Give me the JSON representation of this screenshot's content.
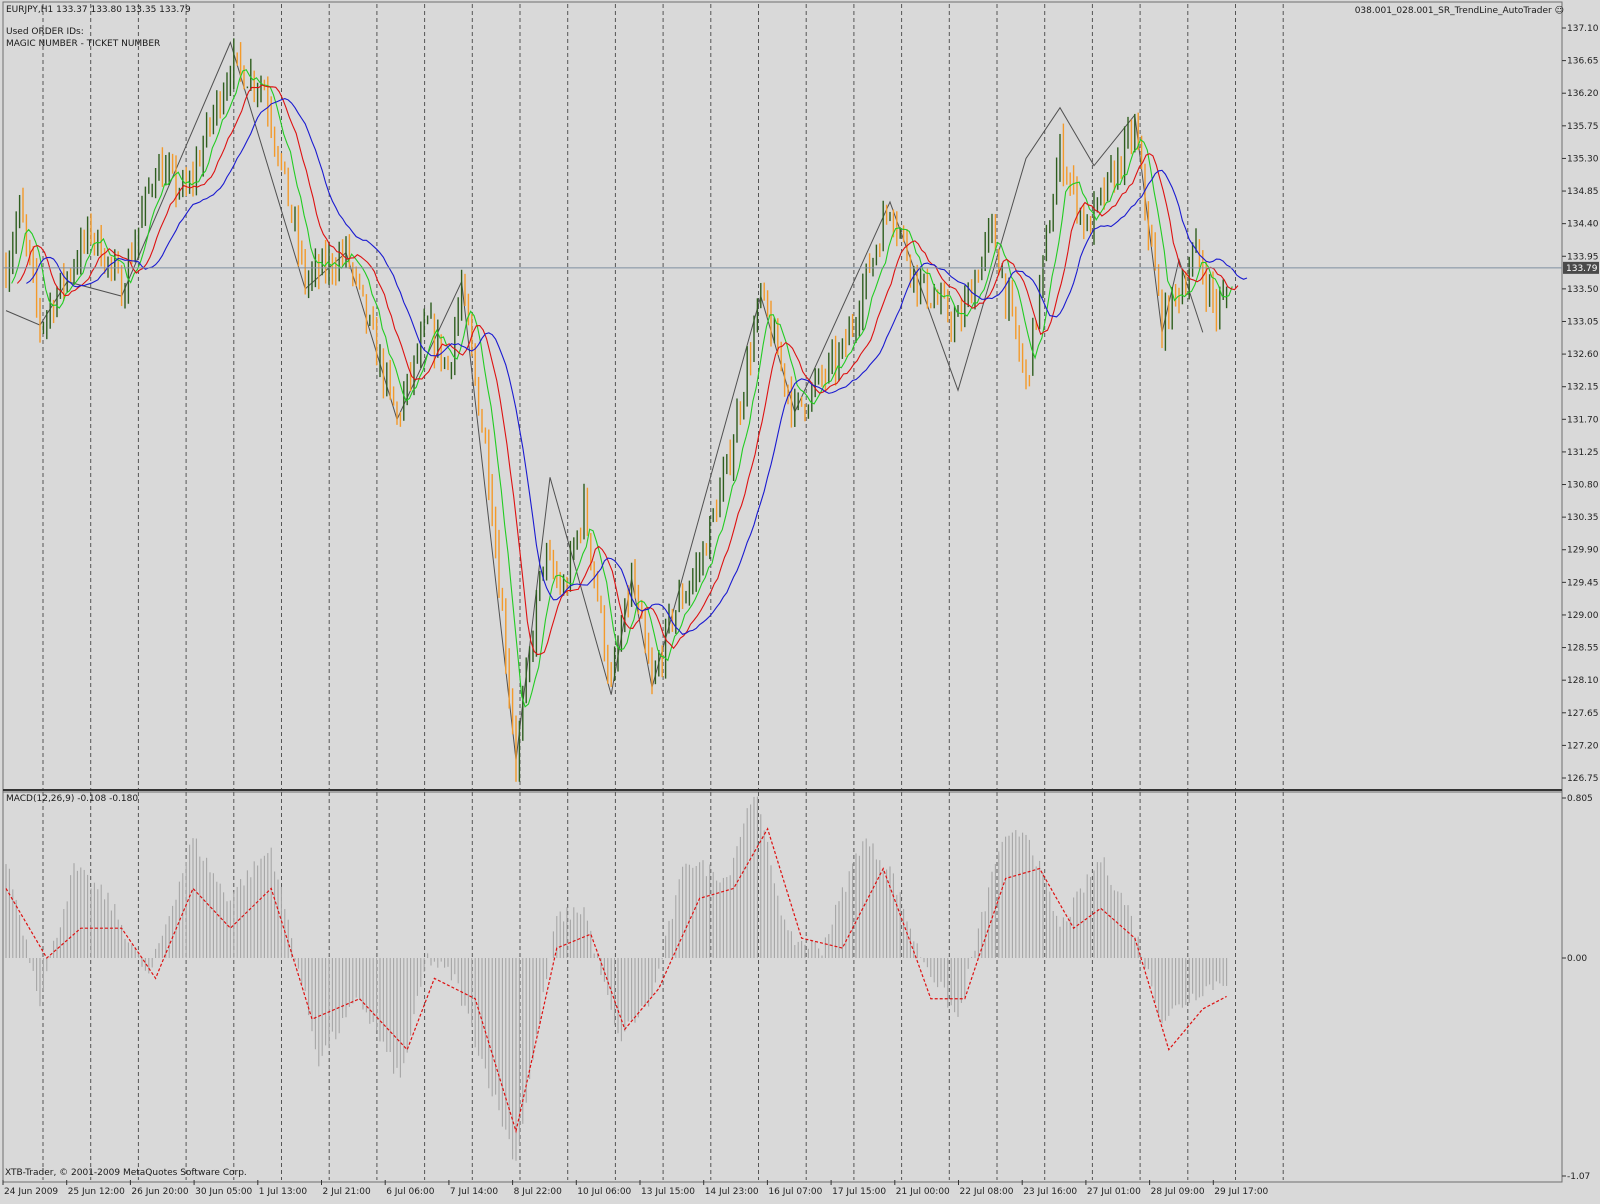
{
  "chart_header": {
    "symbol_info": "EURJPY,H1  133.37 133.80 133.35 133.79",
    "used_ids": "Used ORDER IDs:",
    "magic_line": "MAGIC NUMBER - TICKET NUMBER",
    "expert_name": "038.001_028.001_SR_TrendLine_AutoTrader"
  },
  "current_price": "133.79",
  "macd_label": "MACD(12,26,9) -0.108 -0.180",
  "copyright": "XTB-Trader, © 2001-2009 MetaQuotes Software Corp.",
  "colors": {
    "background": "#d9d9d9",
    "grid": "#555555",
    "bull_candle": "#2e5e1e",
    "bear_candle": "#f39a2a",
    "ma_fast": "#22cc22",
    "ma_mid": "#dd1111",
    "ma_slow": "#1a1ad0",
    "zigzag": "#505050",
    "price_line": "#7f8fa0",
    "macd_hist": "#a6a6a6",
    "macd_signal": "#dd1111"
  },
  "chart_data": [
    {
      "type": "candlestick",
      "title": "EURJPY,H1",
      "price_axis_labels": [
        "137.10",
        "136.65",
        "136.20",
        "135.75",
        "135.30",
        "134.85",
        "134.40",
        "133.95",
        "133.50",
        "133.05",
        "132.60",
        "132.15",
        "131.70",
        "131.25",
        "130.80",
        "130.35",
        "129.90",
        "129.45",
        "129.00",
        "128.55",
        "128.10",
        "127.65",
        "127.20",
        "126.75"
      ],
      "ylim": [
        126.75,
        137.1
      ],
      "time_axis_labels": [
        "24 Jun 2009",
        "25 Jun 12:00",
        "26 Jun 20:00",
        "30 Jun 05:00",
        "1 Jul 13:00",
        "2 Jul 21:00",
        "6 Jul 06:00",
        "7 Jul 14:00",
        "8 Jul 22:00",
        "10 Jul 06:00",
        "13 Jul 15:00",
        "14 Jul 23:00",
        "16 Jul 07:00",
        "17 Jul 15:00",
        "21 Jul 00:00",
        "22 Jul 08:00",
        "23 Jul 16:00",
        "27 Jul 01:00",
        "28 Jul 09:00",
        "29 Jul 17:00"
      ],
      "indicators": [
        "moving average fast (green)",
        "moving average mid (red)",
        "moving average slow (blue)",
        "zigzag (gray)"
      ],
      "close_path": [
        [
          0,
          133.8
        ],
        [
          4,
          134.6
        ],
        [
          10,
          133.0
        ],
        [
          18,
          133.7
        ],
        [
          25,
          134.3
        ],
        [
          34,
          133.5
        ],
        [
          44,
          135.2
        ],
        [
          53,
          134.8
        ],
        [
          66,
          136.6
        ],
        [
          76,
          136.3
        ],
        [
          88,
          133.6
        ],
        [
          100,
          134.0
        ],
        [
          115,
          131.7
        ],
        [
          124,
          133.0
        ],
        [
          130,
          132.4
        ],
        [
          134,
          133.5
        ],
        [
          142,
          131.0
        ],
        [
          150,
          127.0
        ],
        [
          158,
          129.8
        ],
        [
          164,
          129.3
        ],
        [
          170,
          130.5
        ],
        [
          178,
          128.0
        ],
        [
          184,
          129.5
        ],
        [
          190,
          128.0
        ],
        [
          196,
          129.0
        ],
        [
          204,
          129.7
        ],
        [
          212,
          131.0
        ],
        [
          222,
          133.4
        ],
        [
          232,
          131.8
        ],
        [
          246,
          132.6
        ],
        [
          260,
          134.7
        ],
        [
          268,
          133.6
        ],
        [
          280,
          133.0
        ],
        [
          290,
          134.3
        ],
        [
          300,
          132.2
        ],
        [
          310,
          135.4
        ],
        [
          318,
          134.3
        ],
        [
          332,
          135.7
        ],
        [
          340,
          133.0
        ],
        [
          350,
          134.0
        ],
        [
          356,
          133.2
        ],
        [
          360,
          133.5
        ]
      ],
      "last_price": 133.79
    },
    {
      "type": "bar",
      "title": "MACD(12,26,9) -0.108 -0.180",
      "series": [
        {
          "name": "MACD",
          "values_path": [
            [
              0,
              0.5
            ],
            [
              10,
              -0.2
            ],
            [
              20,
              0.45
            ],
            [
              30,
              0.3
            ],
            [
              42,
              -0.1
            ],
            [
              55,
              0.6
            ],
            [
              65,
              0.3
            ],
            [
              78,
              0.55
            ],
            [
              92,
              -0.5
            ],
            [
              104,
              -0.2
            ],
            [
              116,
              -0.6
            ],
            [
              124,
              0.0
            ],
            [
              132,
              -0.1
            ],
            [
              150,
              -1.0
            ],
            [
              162,
              0.2
            ],
            [
              170,
              0.25
            ],
            [
              180,
              -0.4
            ],
            [
              190,
              -0.2
            ],
            [
              200,
              0.5
            ],
            [
              212,
              0.4
            ],
            [
              220,
              0.85
            ],
            [
              230,
              0.1
            ],
            [
              240,
              0.05
            ],
            [
              252,
              0.6
            ],
            [
              260,
              0.45
            ],
            [
              268,
              0.05
            ],
            [
              280,
              -0.3
            ],
            [
              292,
              0.55
            ],
            [
              300,
              0.65
            ],
            [
              310,
              0.15
            ],
            [
              322,
              0.5
            ],
            [
              330,
              0.25
            ],
            [
              340,
              -0.3
            ],
            [
              352,
              -0.15
            ],
            [
              360,
              -0.1
            ]
          ]
        },
        {
          "name": "Signal",
          "values_path": [
            [
              0,
              0.35
            ],
            [
              12,
              0.0
            ],
            [
              22,
              0.15
            ],
            [
              34,
              0.15
            ],
            [
              44,
              -0.1
            ],
            [
              55,
              0.35
            ],
            [
              66,
              0.15
            ],
            [
              78,
              0.35
            ],
            [
              90,
              -0.3
            ],
            [
              104,
              -0.2
            ],
            [
              118,
              -0.45
            ],
            [
              126,
              -0.1
            ],
            [
              138,
              -0.2
            ],
            [
              150,
              -0.85
            ],
            [
              162,
              0.05
            ],
            [
              172,
              0.12
            ],
            [
              182,
              -0.35
            ],
            [
              192,
              -0.15
            ],
            [
              204,
              0.3
            ],
            [
              214,
              0.35
            ],
            [
              224,
              0.65
            ],
            [
              234,
              0.1
            ],
            [
              246,
              0.05
            ],
            [
              258,
              0.45
            ],
            [
              272,
              -0.2
            ],
            [
              282,
              -0.2
            ],
            [
              294,
              0.4
            ],
            [
              304,
              0.45
            ],
            [
              314,
              0.15
            ],
            [
              322,
              0.25
            ],
            [
              332,
              0.1
            ],
            [
              342,
              -0.45
            ],
            [
              352,
              -0.25
            ],
            [
              360,
              -0.18
            ]
          ]
        }
      ],
      "axis_labels": [
        "0.805",
        "0.00",
        "-1.07"
      ],
      "ylim": [
        -1.07,
        0.805
      ]
    }
  ]
}
